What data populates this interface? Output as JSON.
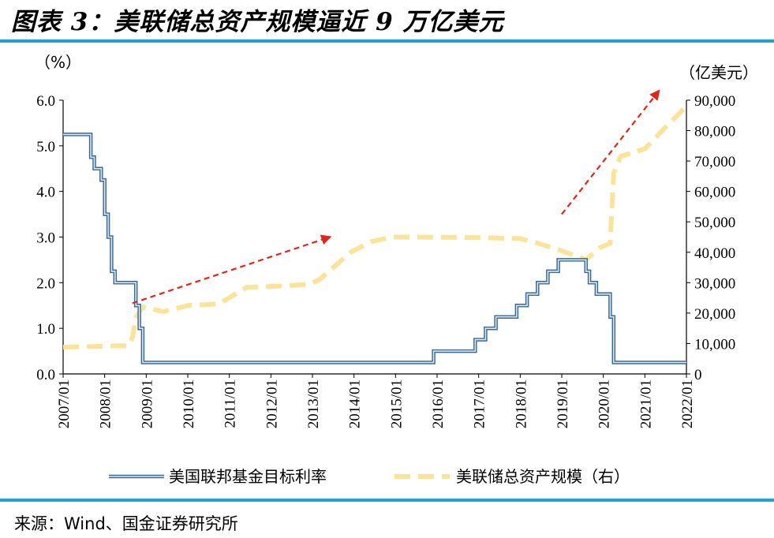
{
  "title": "图表 3：美联储总资产规模逼近 9 万亿美元",
  "source": "来源：Wind、国金证券研究所",
  "colors": {
    "rule": "#20a4cf",
    "rate_outer": "#3a6a95",
    "rate_inner": "#dbe7f3",
    "assets": "#fbe49a",
    "arrow": "#e0261b"
  },
  "chart_data": {
    "type": "line",
    "left_axis": {
      "unit_label": "（%）",
      "range": [
        0,
        6
      ],
      "ticks": [
        "0.0",
        "1.0",
        "2.0",
        "3.0",
        "4.0",
        "5.0",
        "6.0"
      ]
    },
    "right_axis": {
      "unit_label": "（亿美元）",
      "range": [
        0,
        90000
      ],
      "ticks": [
        "0",
        "10,000",
        "20,000",
        "30,000",
        "40,000",
        "50,000",
        "60,000",
        "70,000",
        "80,000",
        "90,000"
      ]
    },
    "x_ticks": [
      "2007/01",
      "2008/01",
      "2009/01",
      "2010/01",
      "2011/01",
      "2012/01",
      "2013/01",
      "2014/01",
      "2015/01",
      "2016/01",
      "2017/01",
      "2018/01",
      "2019/01",
      "2020/01",
      "2021/01",
      "2022/01"
    ],
    "x_range": [
      2007.0,
      2022.0
    ],
    "legend": [
      "美国联邦基金目标利率",
      "美联储总资产规模（右）"
    ],
    "legend_position": "bottom",
    "series": [
      {
        "name": "美国联邦基金目标利率",
        "axis": "left",
        "step": true,
        "points": [
          [
            "2007/01",
            5.25
          ],
          [
            "2007/09",
            4.75
          ],
          [
            "2007/10",
            4.5
          ],
          [
            "2007/12",
            4.25
          ],
          [
            "2008/01",
            3.5
          ],
          [
            "2008/02",
            3.0
          ],
          [
            "2008/03",
            2.25
          ],
          [
            "2008/04",
            2.0
          ],
          [
            "2008/10",
            1.5
          ],
          [
            "2008/11",
            1.0
          ],
          [
            "2008/12",
            0.25
          ],
          [
            "2015/12",
            0.5
          ],
          [
            "2016/12",
            0.75
          ],
          [
            "2017/03",
            1.0
          ],
          [
            "2017/06",
            1.25
          ],
          [
            "2017/12",
            1.5
          ],
          [
            "2018/03",
            1.75
          ],
          [
            "2018/06",
            2.0
          ],
          [
            "2018/09",
            2.25
          ],
          [
            "2018/12",
            2.5
          ],
          [
            "2019/08",
            2.25
          ],
          [
            "2019/09",
            2.0
          ],
          [
            "2019/11",
            1.75
          ],
          [
            "2020/03",
            1.25
          ],
          [
            "2020/04",
            0.25
          ],
          [
            "2022/01",
            0.25
          ]
        ]
      },
      {
        "name": "美联储总资产规模（右）",
        "axis": "right",
        "points": [
          [
            "2007/01",
            8800
          ],
          [
            "2008/08",
            9300
          ],
          [
            "2008/09",
            12000
          ],
          [
            "2008/10",
            18500
          ],
          [
            "2008/12",
            22000
          ],
          [
            "2009/06",
            20500
          ],
          [
            "2010/01",
            22500
          ],
          [
            "2010/10",
            23000
          ],
          [
            "2011/06",
            28500
          ],
          [
            "2012/06",
            29000
          ],
          [
            "2012/12",
            29500
          ],
          [
            "2013/03",
            31000
          ],
          [
            "2013/12",
            40000
          ],
          [
            "2014/06",
            43500
          ],
          [
            "2014/12",
            45000
          ],
          [
            "2015/06",
            45000
          ],
          [
            "2017/01",
            44800
          ],
          [
            "2018/01",
            44500
          ],
          [
            "2018/06",
            43000
          ],
          [
            "2019/01",
            40500
          ],
          [
            "2019/08",
            37500
          ],
          [
            "2019/12",
            41500
          ],
          [
            "2020/03",
            43000
          ],
          [
            "2020/04",
            66000
          ],
          [
            "2020/06",
            71500
          ],
          [
            "2021/01",
            74000
          ],
          [
            "2021/06",
            80000
          ],
          [
            "2022/01",
            88000
          ]
        ]
      }
    ],
    "annotations": [
      {
        "type": "arrow",
        "from": [
          "2008/09",
          1.55
        ],
        "to": [
          "2013/06",
          3.0
        ],
        "axis": "left"
      },
      {
        "type": "arrow",
        "from": [
          "2019/01",
          3.5
        ],
        "to": [
          "2021/05",
          6.2
        ],
        "axis": "left"
      }
    ]
  }
}
